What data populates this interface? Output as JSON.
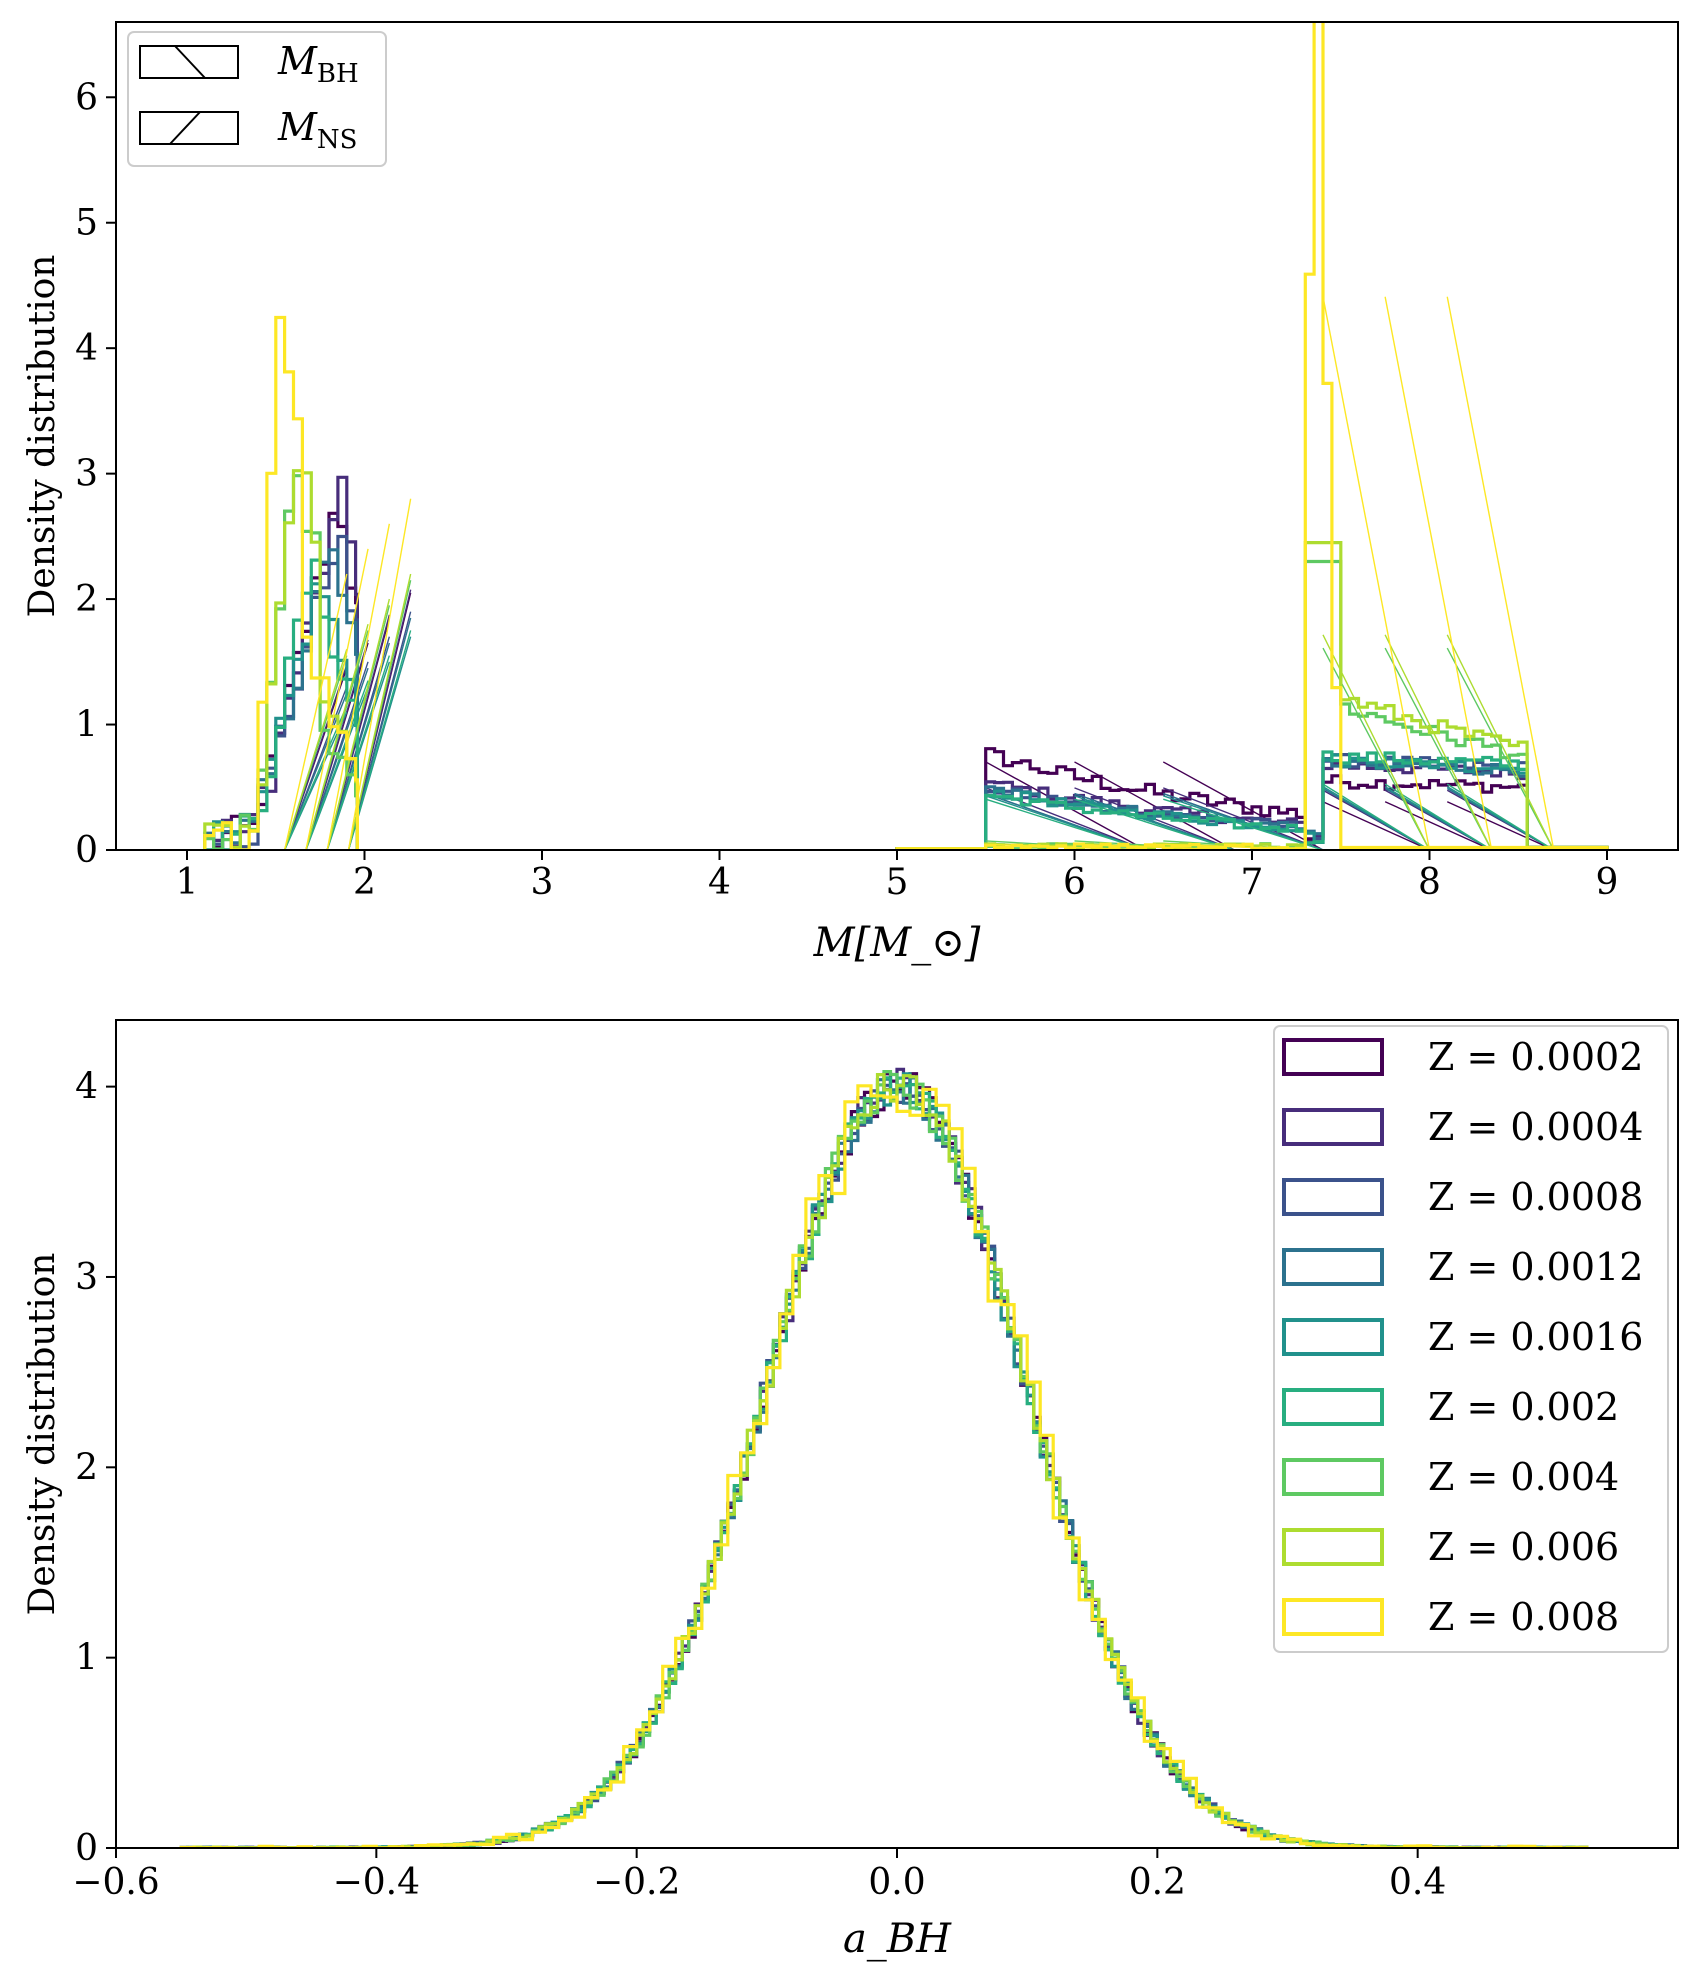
{
  "chart_data": [
    {
      "type": "histogram",
      "title": "",
      "xlabel": "M[M_⊙]",
      "ylabel": "Density distribution",
      "xlim": [
        0.6,
        9.4
      ],
      "ylim": [
        0,
        6.6
      ],
      "xticks": [
        "1",
        "2",
        "3",
        "4",
        "5",
        "6",
        "7",
        "8",
        "9"
      ],
      "yticks": [
        "0",
        "1",
        "2",
        "3",
        "4",
        "5",
        "6"
      ],
      "legend": {
        "position": "top-left",
        "entries": [
          {
            "main": "M",
            "sub": "BH",
            "hatch": "backslash"
          },
          {
            "main": "M",
            "sub": "NS",
            "hatch": "slash"
          }
        ]
      },
      "series": [
        {
          "name": "Z = 0.0002",
          "color": "#440154",
          "ns_peak": [
            1.85,
            2.9
          ],
          "bh_low": [
            5.55,
            0.78
          ],
          "bh_mid": [
            7.4,
            0.55
          ]
        },
        {
          "name": "Z = 0.0004",
          "color": "#472d7b",
          "ns_peak": [
            1.88,
            2.95
          ],
          "bh_low": [
            5.5,
            0.55
          ],
          "bh_mid": [
            7.4,
            0.68
          ]
        },
        {
          "name": "Z = 0.0008",
          "color": "#3b528b",
          "ns_peak": [
            1.85,
            2.6
          ],
          "bh_low": [
            5.5,
            0.5
          ],
          "bh_mid": [
            7.4,
            0.72
          ]
        },
        {
          "name": "Z = 0.0012",
          "color": "#2c728e",
          "ns_peak": [
            1.82,
            2.5
          ],
          "bh_low": [
            5.5,
            0.5
          ],
          "bh_mid": [
            7.4,
            0.7
          ]
        },
        {
          "name": "Z = 0.0016",
          "color": "#21918c",
          "ns_peak": [
            1.75,
            2.2
          ],
          "bh_low": [
            5.5,
            0.48
          ],
          "bh_mid": [
            7.4,
            0.72
          ]
        },
        {
          "name": "Z = 0.002",
          "color": "#28ae80",
          "ns_peak": [
            1.7,
            2.3
          ],
          "bh_low": [
            5.5,
            0.45
          ],
          "bh_mid": [
            7.4,
            0.75
          ]
        },
        {
          "name": "Z = 0.004",
          "color": "#5ec962",
          "ns_peak": [
            1.6,
            3.1
          ],
          "bh_low": [
            5.6,
            0.08
          ],
          "bh_mid": [
            7.3,
            2.3
          ]
        },
        {
          "name": "Z = 0.006",
          "color": "#addc30",
          "ns_peak": [
            1.62,
            3.2
          ],
          "bh_low": [
            5.6,
            0.06
          ],
          "bh_mid": [
            7.4,
            2.45
          ]
        },
        {
          "name": "Z = 0.008",
          "color": "#fde725",
          "ns_peak": [
            1.5,
            4.4
          ],
          "bh_low": [
            5.5,
            0.05
          ],
          "bh_mid": [
            7.35,
            6.3
          ]
        }
      ]
    },
    {
      "type": "histogram",
      "title": "",
      "xlabel": "a_BH",
      "ylabel": "Density distribution",
      "xlim": [
        -0.6,
        0.6
      ],
      "ylim": [
        0,
        4.35
      ],
      "xticks": [
        "−0.6",
        "−0.4",
        "−0.2",
        "0.0",
        "0.2",
        "0.4"
      ],
      "yticks": [
        "0",
        "1",
        "2",
        "3",
        "4"
      ],
      "distribution": {
        "shape": "gaussian",
        "mean": 0.0,
        "std": 0.1,
        "peak_density": 4.0,
        "range": [
          -0.55,
          0.53
        ]
      },
      "legend": {
        "position": "top-right",
        "entries": [
          {
            "label": "Z = 0.0002",
            "color": "#440154"
          },
          {
            "label": "Z = 0.0004",
            "color": "#472d7b"
          },
          {
            "label": "Z = 0.0008",
            "color": "#3b528b"
          },
          {
            "label": "Z = 0.0012",
            "color": "#2c728e"
          },
          {
            "label": "Z = 0.0016",
            "color": "#21918c"
          },
          {
            "label": "Z = 0.002",
            "color": "#28ae80"
          },
          {
            "label": "Z = 0.004",
            "color": "#5ec962"
          },
          {
            "label": "Z = 0.006",
            "color": "#addc30"
          },
          {
            "label": "Z = 0.008",
            "color": "#fde725"
          }
        ]
      }
    }
  ]
}
